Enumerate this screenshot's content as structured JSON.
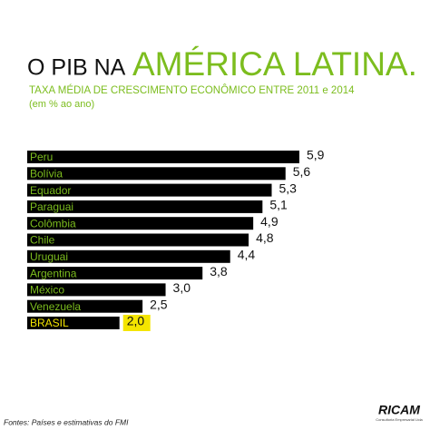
{
  "chart_data": {
    "type": "bar",
    "orientation": "horizontal",
    "title": "O PIB NA",
    "title_highlight": "AMÉRICA LATINA.",
    "subtitle": "TAXA MÉDIA DE CRESCIMENTO ECONÔMICO ENTRE 2011 e 2014",
    "unit_note": "(em % ao ano)",
    "categories": [
      "Peru",
      "Bolívia",
      "Equador",
      "Paraguai",
      "Colômbia",
      "Chile",
      "Uruguai",
      "Argentina",
      "México",
      "Venezuela",
      "BRASIL"
    ],
    "values": [
      5.9,
      5.6,
      5.3,
      5.1,
      4.9,
      4.8,
      4.4,
      3.8,
      3.0,
      2.5,
      2.0
    ],
    "value_labels": [
      "5,9",
      "5,6",
      "5,3",
      "5,1",
      "4,9",
      "4,8",
      "4,4",
      "3,8",
      "3,0",
      "2,5",
      "2,0"
    ],
    "color": "#000000",
    "label_color": "#7cbd1e",
    "accent_color": "#7cbd1e",
    "highlight_index": 10,
    "highlight_color": "#f4e500"
  },
  "footer": {
    "source": "Fontes: Países e estimativas do FMI"
  },
  "logo": {
    "name": "RICAM",
    "tagline": "Consultoria Empresarial Ltda"
  }
}
